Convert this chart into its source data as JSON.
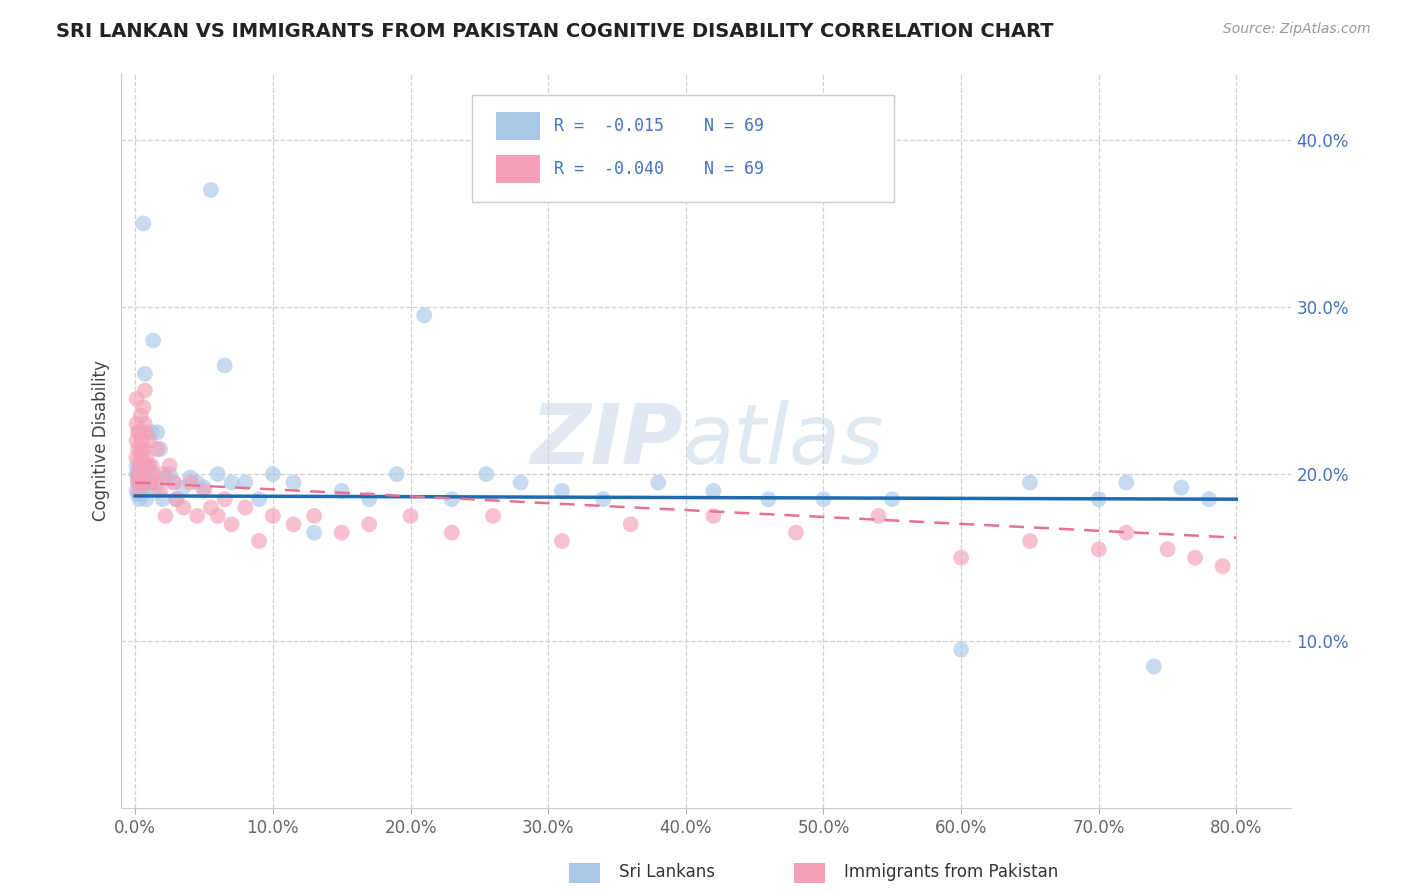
{
  "title": "SRI LANKAN VS IMMIGRANTS FROM PAKISTAN COGNITIVE DISABILITY CORRELATION CHART",
  "source_text": "Source: ZipAtlas.com",
  "xlabel_ticks": [
    "0.0%",
    "10.0%",
    "20.0%",
    "30.0%",
    "40.0%",
    "50.0%",
    "60.0%",
    "70.0%",
    "80.0%"
  ],
  "xlabel_vals": [
    0.0,
    0.1,
    0.2,
    0.3,
    0.4,
    0.5,
    0.6,
    0.7,
    0.8
  ],
  "ylabel": "Cognitive Disability",
  "ylabel_ticks": [
    "10.0%",
    "20.0%",
    "30.0%",
    "40.0%"
  ],
  "ylabel_vals": [
    0.1,
    0.2,
    0.3,
    0.4
  ],
  "xlim": [
    -0.01,
    0.84
  ],
  "ylim": [
    0.0,
    0.44
  ],
  "legend_labels": [
    "Sri Lankans",
    "Immigrants from Pakistan"
  ],
  "r_sri": -0.015,
  "n_sri": 69,
  "r_pak": -0.04,
  "n_pak": 69,
  "color_sri": "#a8c8e8",
  "color_pak": "#f4a0b8",
  "color_sri_line": "#1f6bb0",
  "color_pak_line": "#e87090",
  "watermark_zip": "ZIP",
  "watermark_atlas": "atlas",
  "background_color": "#ffffff",
  "sri_x": [
    0.001,
    0.001,
    0.001,
    0.002,
    0.002,
    0.002,
    0.002,
    0.003,
    0.003,
    0.003,
    0.003,
    0.004,
    0.004,
    0.004,
    0.005,
    0.005,
    0.005,
    0.006,
    0.006,
    0.007,
    0.007,
    0.008,
    0.009,
    0.01,
    0.011,
    0.012,
    0.013,
    0.015,
    0.016,
    0.018,
    0.02,
    0.022,
    0.025,
    0.028,
    0.03,
    0.035,
    0.04,
    0.045,
    0.05,
    0.055,
    0.06,
    0.065,
    0.07,
    0.08,
    0.09,
    0.1,
    0.115,
    0.13,
    0.15,
    0.17,
    0.19,
    0.21,
    0.23,
    0.255,
    0.28,
    0.31,
    0.34,
    0.38,
    0.42,
    0.46,
    0.5,
    0.55,
    0.6,
    0.65,
    0.7,
    0.72,
    0.74,
    0.76,
    0.78
  ],
  "sri_y": [
    0.19,
    0.2,
    0.205,
    0.195,
    0.188,
    0.198,
    0.202,
    0.193,
    0.197,
    0.201,
    0.185,
    0.195,
    0.199,
    0.192,
    0.196,
    0.203,
    0.188,
    0.198,
    0.35,
    0.192,
    0.26,
    0.185,
    0.198,
    0.205,
    0.195,
    0.225,
    0.28,
    0.192,
    0.225,
    0.215,
    0.185,
    0.198,
    0.2,
    0.195,
    0.185,
    0.192,
    0.198,
    0.195,
    0.192,
    0.37,
    0.2,
    0.265,
    0.195,
    0.195,
    0.185,
    0.2,
    0.195,
    0.165,
    0.19,
    0.185,
    0.2,
    0.295,
    0.185,
    0.2,
    0.195,
    0.19,
    0.185,
    0.195,
    0.19,
    0.185,
    0.185,
    0.185,
    0.095,
    0.195,
    0.185,
    0.195,
    0.085,
    0.192,
    0.185
  ],
  "pak_x": [
    0.001,
    0.001,
    0.001,
    0.001,
    0.002,
    0.002,
    0.002,
    0.002,
    0.003,
    0.003,
    0.003,
    0.003,
    0.004,
    0.004,
    0.004,
    0.004,
    0.005,
    0.005,
    0.005,
    0.006,
    0.006,
    0.006,
    0.007,
    0.007,
    0.008,
    0.008,
    0.009,
    0.01,
    0.011,
    0.012,
    0.013,
    0.015,
    0.016,
    0.018,
    0.02,
    0.022,
    0.025,
    0.028,
    0.03,
    0.035,
    0.04,
    0.045,
    0.05,
    0.055,
    0.06,
    0.065,
    0.07,
    0.08,
    0.09,
    0.1,
    0.115,
    0.13,
    0.15,
    0.17,
    0.2,
    0.23,
    0.26,
    0.31,
    0.36,
    0.42,
    0.48,
    0.54,
    0.6,
    0.65,
    0.7,
    0.72,
    0.75,
    0.77,
    0.79
  ],
  "pak_y": [
    0.23,
    0.21,
    0.245,
    0.22,
    0.2,
    0.215,
    0.225,
    0.195,
    0.205,
    0.2,
    0.225,
    0.19,
    0.235,
    0.21,
    0.215,
    0.195,
    0.22,
    0.21,
    0.195,
    0.215,
    0.205,
    0.24,
    0.23,
    0.25,
    0.225,
    0.21,
    0.205,
    0.22,
    0.195,
    0.205,
    0.2,
    0.195,
    0.215,
    0.19,
    0.2,
    0.175,
    0.205,
    0.195,
    0.185,
    0.18,
    0.195,
    0.175,
    0.19,
    0.18,
    0.175,
    0.185,
    0.17,
    0.18,
    0.16,
    0.175,
    0.17,
    0.175,
    0.165,
    0.17,
    0.175,
    0.165,
    0.175,
    0.16,
    0.17,
    0.175,
    0.165,
    0.175,
    0.15,
    0.16,
    0.155,
    0.165,
    0.155,
    0.15,
    0.145
  ],
  "sri_line_x": [
    0.0,
    0.8
  ],
  "sri_line_y": [
    0.187,
    0.185
  ],
  "pak_line_x": [
    0.0,
    0.8
  ],
  "pak_line_y": [
    0.195,
    0.162
  ]
}
